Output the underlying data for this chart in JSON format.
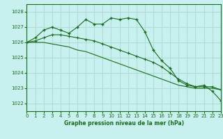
{
  "title": "Graphe pression niveau de la mer (hPa)",
  "background_color": "#c8f0ee",
  "grid_color": "#b0ddd8",
  "line_color": "#1a6b1a",
  "xlim": [
    0,
    23
  ],
  "ylim": [
    1021.5,
    1028.5
  ],
  "yticks": [
    1022,
    1023,
    1024,
    1025,
    1026,
    1027,
    1028
  ],
  "xticks": [
    0,
    1,
    2,
    3,
    4,
    5,
    6,
    7,
    8,
    9,
    10,
    11,
    12,
    13,
    14,
    15,
    16,
    17,
    18,
    19,
    20,
    21,
    22,
    23
  ],
  "series1_y": [
    1026.0,
    1026.3,
    1026.8,
    1027.0,
    1026.8,
    1026.6,
    1027.0,
    1027.5,
    1027.2,
    1027.2,
    1027.6,
    1027.5,
    1027.6,
    1027.5,
    1026.7,
    1025.5,
    1024.8,
    1024.3,
    1023.5,
    1023.2,
    1023.1,
    1023.2,
    1022.8,
    1022.2
  ],
  "series2_y": [
    1026.0,
    1026.1,
    1026.3,
    1026.5,
    1026.5,
    1026.4,
    1026.3,
    1026.2,
    1026.1,
    1025.9,
    1025.7,
    1025.5,
    1025.3,
    1025.1,
    1024.9,
    1024.7,
    1024.4,
    1024.0,
    1023.6,
    1023.3,
    1023.1,
    1023.1,
    1023.1,
    1022.9
  ],
  "series3_y": [
    1026.0,
    1026.0,
    1026.0,
    1025.9,
    1025.8,
    1025.7,
    1025.5,
    1025.4,
    1025.2,
    1025.0,
    1024.8,
    1024.6,
    1024.4,
    1024.2,
    1024.0,
    1023.8,
    1023.6,
    1023.4,
    1023.2,
    1023.1,
    1023.0,
    1023.0,
    1023.0,
    1022.9
  ]
}
